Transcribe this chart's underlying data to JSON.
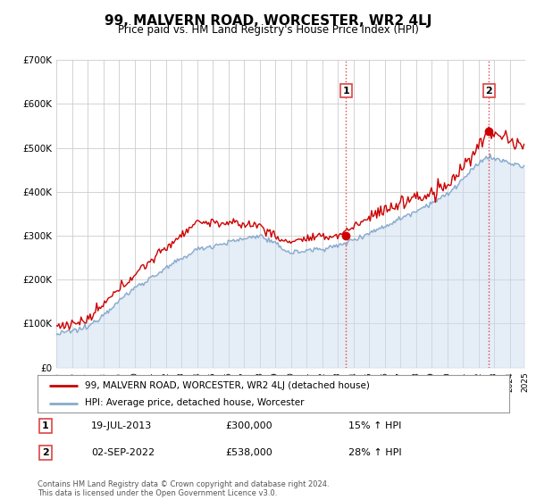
{
  "title": "99, MALVERN ROAD, WORCESTER, WR2 4LJ",
  "subtitle": "Price paid vs. HM Land Registry's House Price Index (HPI)",
  "ylim": [
    0,
    700000
  ],
  "yticks": [
    0,
    100000,
    200000,
    300000,
    400000,
    500000,
    600000,
    700000
  ],
  "ytick_labels": [
    "£0",
    "£100K",
    "£200K",
    "£300K",
    "£400K",
    "£500K",
    "£600K",
    "£700K"
  ],
  "purchase1_year_dec": 2013.54,
  "purchase1_price": 300000,
  "purchase2_year_dec": 2022.67,
  "purchase2_price": 538000,
  "purchase1_date": "19-JUL-2013",
  "purchase2_date": "02-SEP-2022",
  "purchase1_hpi": "15% ↑ HPI",
  "purchase2_hpi": "28% ↑ HPI",
  "legend_house_label": "99, MALVERN ROAD, WORCESTER, WR2 4LJ (detached house)",
  "legend_hpi_label": "HPI: Average price, detached house, Worcester",
  "house_line_color": "#cc0000",
  "hpi_line_color": "#88aacc",
  "hpi_fill_color": "#ccddf0",
  "purchase_marker_color": "#cc0000",
  "vline_color": "#dd4444",
  "grid_color": "#cccccc",
  "background_color": "#ffffff",
  "footer": "Contains HM Land Registry data © Crown copyright and database right 2024.\nThis data is licensed under the Open Government Licence v3.0."
}
